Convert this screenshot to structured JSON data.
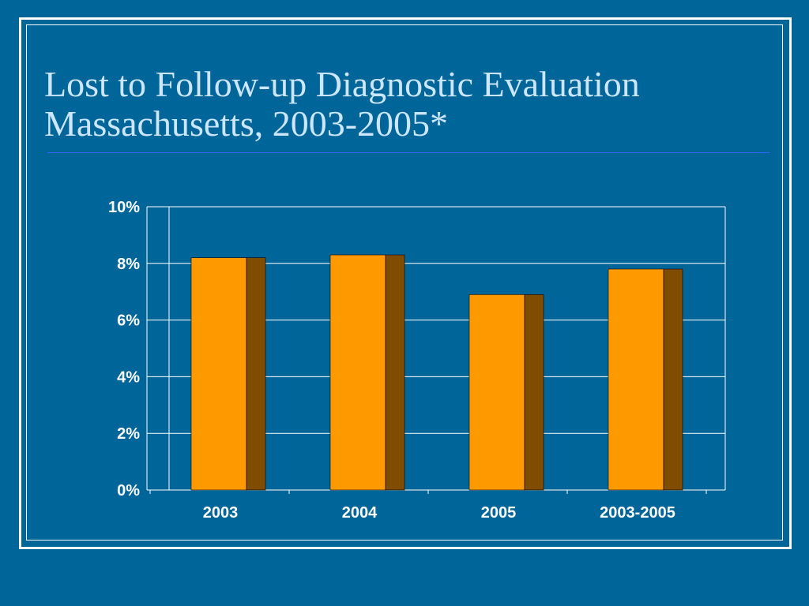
{
  "slide": {
    "title_line1": "Lost to Follow-up Diagnostic Evaluation",
    "title_line2": "Massachusetts, 2003-2005*"
  },
  "colors": {
    "background": "#006699",
    "title": "#cce6ff",
    "title_rule": "#3366ff",
    "bar_front": "#FF9900",
    "bar_side": "#7F4C00",
    "grid": "#ffffff",
    "text": "#ffffff"
  },
  "chart_data": {
    "type": "bar",
    "categories": [
      "2003",
      "2004",
      "2005",
      "2003-2005"
    ],
    "values": [
      8.2,
      8.3,
      6.9,
      7.8
    ],
    "unit": "%",
    "ylim": [
      0,
      10
    ],
    "yticks": [
      "0%",
      "2%",
      "4%",
      "6%",
      "8%",
      "10%"
    ],
    "grid": true,
    "legend": "none",
    "bar_style": "3d"
  }
}
